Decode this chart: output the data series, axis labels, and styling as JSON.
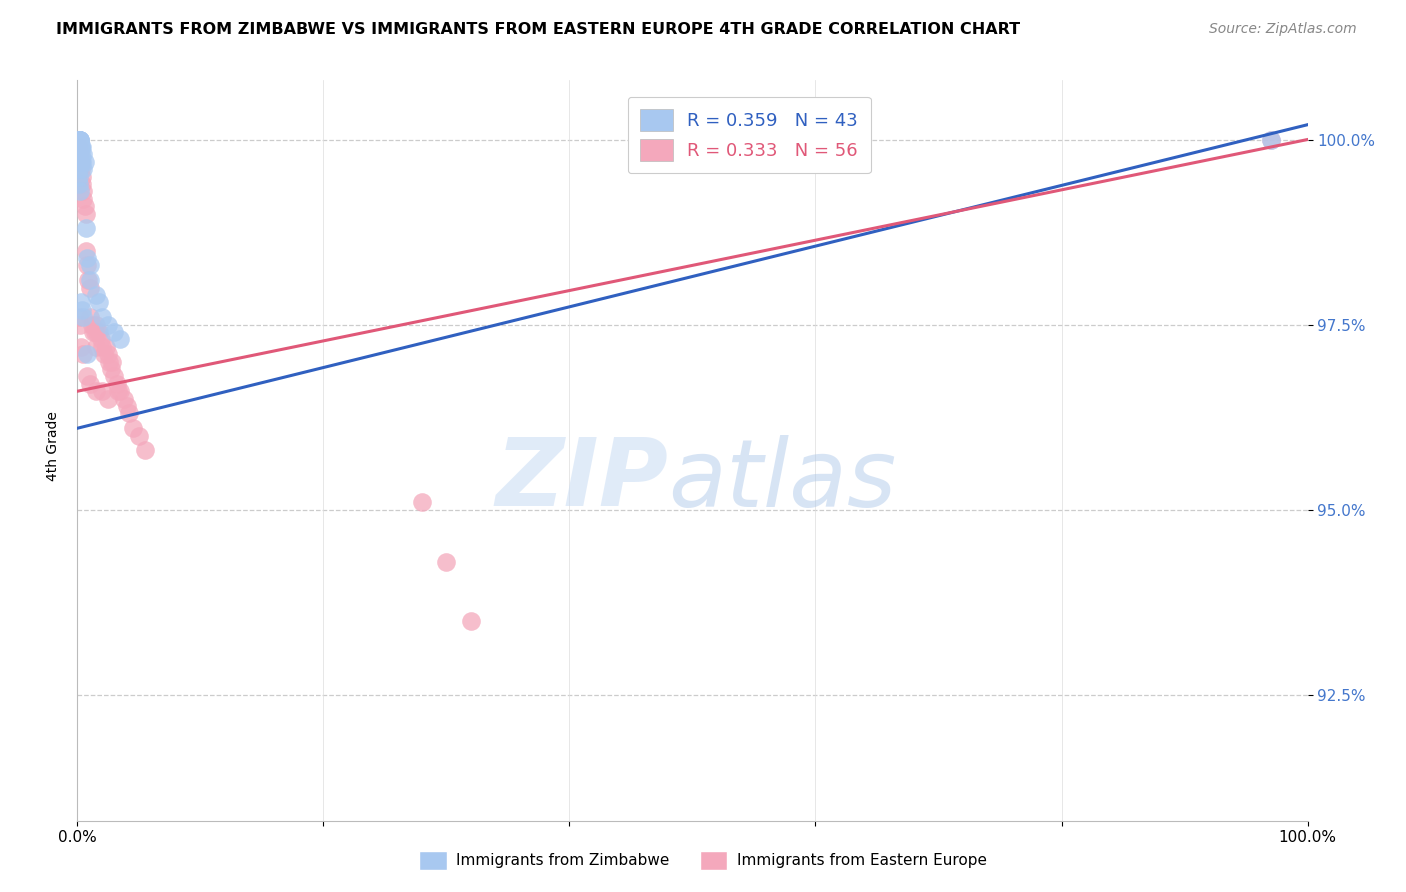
{
  "title": "IMMIGRANTS FROM ZIMBABWE VS IMMIGRANTS FROM EASTERN EUROPE 4TH GRADE CORRELATION CHART",
  "source": "Source: ZipAtlas.com",
  "ylabel": "4th Grade",
  "legend_blue_r": "R = 0.359",
  "legend_blue_n": "N = 43",
  "legend_pink_r": "R = 0.333",
  "legend_pink_n": "N = 56",
  "blue_color": "#A8C8F0",
  "pink_color": "#F4A8BC",
  "blue_line_color": "#3060C0",
  "pink_line_color": "#E05878",
  "xlim": [
    0.0,
    1.0
  ],
  "ylim": [
    0.908,
    1.008
  ],
  "ytick_vals": [
    1.0,
    0.975,
    0.95,
    0.925
  ],
  "ytick_labels": [
    "100.0%",
    "97.5%",
    "95.0%",
    "92.5%"
  ],
  "blue_x": [
    0.001,
    0.001,
    0.001,
    0.001,
    0.001,
    0.001,
    0.001,
    0.001,
    0.001,
    0.001,
    0.002,
    0.002,
    0.002,
    0.002,
    0.002,
    0.003,
    0.003,
    0.003,
    0.003,
    0.004,
    0.004,
    0.005,
    0.005,
    0.006,
    0.007,
    0.008,
    0.01,
    0.01,
    0.015,
    0.018,
    0.02,
    0.025,
    0.03,
    0.035,
    0.001,
    0.001,
    0.001,
    0.002,
    0.003,
    0.004,
    0.005,
    0.008,
    0.97
  ],
  "blue_y": [
    1.0,
    1.0,
    1.0,
    1.0,
    1.0,
    1.0,
    1.0,
    1.0,
    1.0,
    1.0,
    1.0,
    1.0,
    1.0,
    1.0,
    0.999,
    0.999,
    0.999,
    0.998,
    0.997,
    0.999,
    0.997,
    0.998,
    0.996,
    0.997,
    0.988,
    0.984,
    0.983,
    0.981,
    0.979,
    0.978,
    0.976,
    0.975,
    0.974,
    0.973,
    0.996,
    0.995,
    0.994,
    0.993,
    0.978,
    0.977,
    0.976,
    0.971,
    1.0
  ],
  "pink_x": [
    0.001,
    0.001,
    0.001,
    0.002,
    0.002,
    0.003,
    0.003,
    0.004,
    0.004,
    0.005,
    0.005,
    0.006,
    0.007,
    0.007,
    0.008,
    0.009,
    0.01,
    0.01,
    0.012,
    0.013,
    0.014,
    0.015,
    0.015,
    0.016,
    0.018,
    0.019,
    0.02,
    0.022,
    0.023,
    0.025,
    0.026,
    0.027,
    0.028,
    0.03,
    0.032,
    0.033,
    0.035,
    0.038,
    0.04,
    0.042,
    0.045,
    0.05,
    0.055,
    0.001,
    0.002,
    0.003,
    0.005,
    0.008,
    0.01,
    0.015,
    0.02,
    0.025,
    0.28,
    0.3,
    0.32,
    0.97
  ],
  "pink_y": [
    0.999,
    0.998,
    0.996,
    0.998,
    0.997,
    0.997,
    0.996,
    0.995,
    0.994,
    0.993,
    0.992,
    0.991,
    0.99,
    0.985,
    0.983,
    0.981,
    0.98,
    0.976,
    0.975,
    0.974,
    0.974,
    0.975,
    0.972,
    0.974,
    0.974,
    0.973,
    0.972,
    0.971,
    0.972,
    0.971,
    0.97,
    0.969,
    0.97,
    0.968,
    0.967,
    0.966,
    0.966,
    0.965,
    0.964,
    0.963,
    0.961,
    0.96,
    0.958,
    0.976,
    0.975,
    0.972,
    0.971,
    0.968,
    0.967,
    0.966,
    0.966,
    0.965,
    0.951,
    0.943,
    0.935,
    1.0
  ],
  "blue_trend_x0": 0.0,
  "blue_trend_x1": 1.0,
  "blue_trend_y0": 0.961,
  "blue_trend_y1": 1.002,
  "pink_trend_x0": 0.0,
  "pink_trend_x1": 1.0,
  "pink_trend_y0": 0.966,
  "pink_trend_y1": 1.0
}
